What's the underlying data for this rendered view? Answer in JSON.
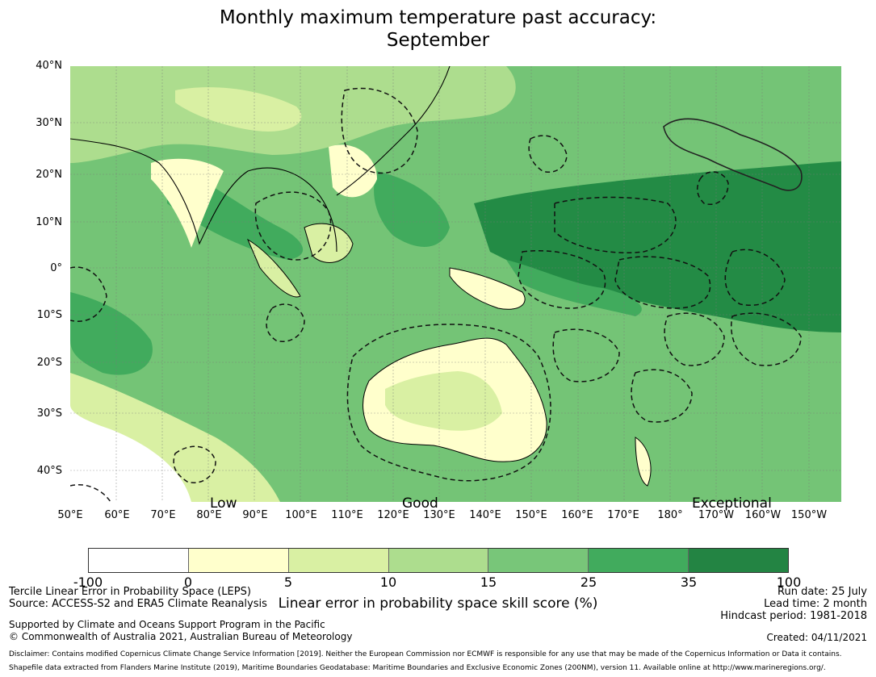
{
  "title_line1": "Monthly maximum temperature past accuracy:",
  "title_line2": "September",
  "map": {
    "latitude_labels": [
      "40°N",
      "30°N",
      "20°N",
      "10°N",
      "0°",
      "10°S",
      "20°S",
      "30°S",
      "40°S"
    ],
    "longitude_labels": [
      "50°E",
      "60°E",
      "70°E",
      "80°E",
      "90°E",
      "100°E",
      "110°E",
      "120°E",
      "130°E",
      "140°E",
      "150°E",
      "160°E",
      "170°E",
      "180°",
      "170°W",
      "160°W",
      "150°W"
    ],
    "skill_words": [
      "Low",
      "Good",
      "Exceptional"
    ],
    "colors": {
      "ocean_base": "#74c476",
      "high_skill": "#238b45",
      "mid_skill": "#41ab5d",
      "low_skill": "#addd8e",
      "very_low": "#d9f0a3",
      "land_low": "#ffffcc",
      "coast": "#000000"
    }
  },
  "colorbar": {
    "ticks": [
      "-100",
      "0",
      "5",
      "10",
      "15",
      "25",
      "35",
      "100"
    ],
    "colors": [
      "#ffffff",
      "#ffffcc",
      "#d9f0a3",
      "#addd8e",
      "#78c679",
      "#41ab5d",
      "#238443"
    ],
    "label": "Linear error in probability space skill score (%)"
  },
  "footer": {
    "method": "Tercile Linear Error in Probability Space (LEPS)",
    "source": "Source: ACCESS-S2 and ERA5 Climate Reanalysis",
    "support": "Supported by Climate and Oceans Support Program in the Pacific",
    "copyright": "© Commonwealth of Australia 2021, Australian Bureau of Meteorology",
    "run_date": "Run date: 25 July",
    "lead_time": "Lead time: 2 month",
    "hindcast": "Hindcast period: 1981-2018",
    "created": "Created: 04/11/2021",
    "disclaimer": "Disclaimer: Contains modified Copernicus Climate Change Service Information [2019]. Neither the European Commission nor ECMWF is responsible for any use that may be made of the Copernicus Information or Data it contains.",
    "shapefile": "Shapefile data extracted from Flanders Marine Institute (2019), Maritime Boundaries Geodatabase: Maritime Boundaries and Exclusive Economic Zones (200NM), version 11. Available online at http://www.marineregions.org/."
  }
}
